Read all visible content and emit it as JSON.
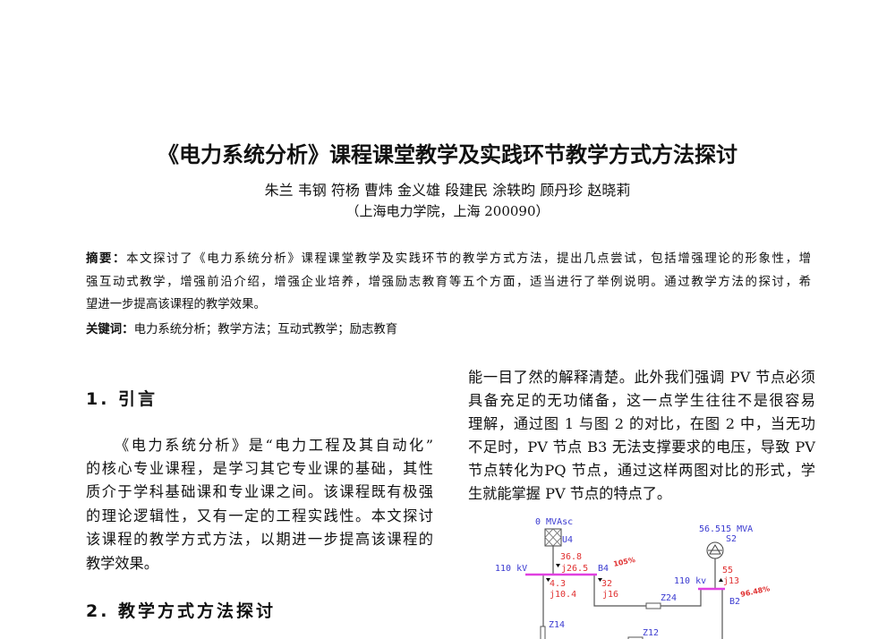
{
  "title": "《电力系统分析》课程课堂教学及实践环节教学方式方法探讨",
  "authors": "朱兰  韦钢  符杨  曹炜  金义雄  段建民  涂轶昀  顾丹珍  赵晓莉",
  "affiliation": "（上海电力学院，上海 200090）",
  "abstract": {
    "label": "摘要：",
    "lines": [
      "本文探讨了《电力系统分析》课程课堂教学及实践环节的教学方式方法，提出几点尝试，包括增强理论的形象性，增",
      "强互动式教学，增强前沿介绍，增强企业培养，增强励志教育等五个方面，适当进行了举例说明。通过教学方法的探讨，希",
      "望进一步提高该课程的教学效果。"
    ]
  },
  "keywords": {
    "label": "关键词：",
    "text": "电力系统分析；教学方法；互动式教学；励志教育"
  },
  "section1": {
    "heading": "1.  引言",
    "lines": [
      "《电力系统分析》是“电力工程及其自动化”",
      "的核心专业课程，是学习其它专业课的基础，其性",
      "质介于学科基础课和专业课之间。该课程既有极强",
      "的理论逻辑性，又有一定的工程实践性。本文探讨",
      "该课程的教学方式方法，以期进一步提高该课程的",
      "教学效果。"
    ]
  },
  "section2": {
    "heading": "2.  教学方式方法探讨"
  },
  "right_column": {
    "lines": [
      "能一目了然的解释清楚。此外我们强调 PV 节点必须",
      "具备充足的无功储备，这一点学生往往不是很容易",
      "理解，通过图 1 与图 2 的对比，在图 2 中，当无功",
      "不足时，PV 节点 B3 无法支撑要求的电压，导致 PV",
      "节点转化为PQ 节点，通过这样两图对比的形式，学",
      "生就能掌握 PV 节点的特点了。"
    ]
  },
  "diagram": {
    "u4_rating": "0 MVAsc",
    "u4_label": "U4",
    "b4_voltage": "110 kV",
    "b4_label": "B4",
    "b4_percent": "105%",
    "u4_p": "36.8",
    "u4_q": "j26.5",
    "z14_p": "4.3",
    "z14_q": "j10.4",
    "z24_p": "32",
    "z24_q": "j16",
    "z24_label": "Z24",
    "z14_label": "Z14",
    "z12_label": "Z12",
    "s2_rating": "56.515 MVA",
    "s2_label": "S2",
    "b2_voltage": "110 kv",
    "s2_p": "55",
    "s2_q": "j13",
    "b2_label": "B2",
    "b2_percent": "96.48%",
    "colors": {
      "bus": "#e040e0",
      "label": "#3a3ad0",
      "value": "#e03030",
      "line": "#555555"
    }
  }
}
